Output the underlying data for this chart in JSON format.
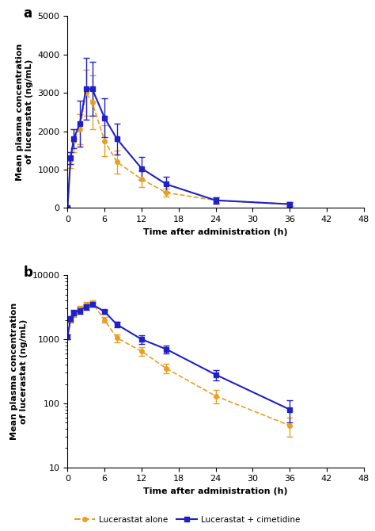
{
  "panel_a": {
    "orange_x": [
      0,
      0.5,
      1,
      2,
      3,
      4,
      6,
      8,
      12,
      16,
      24,
      36
    ],
    "orange_y": [
      0,
      1250,
      1750,
      2050,
      3000,
      2750,
      1750,
      1200,
      750,
      400,
      200,
      100
    ],
    "orange_err": [
      0,
      200,
      300,
      400,
      600,
      700,
      400,
      300,
      200,
      100,
      80,
      50
    ],
    "blue_x": [
      0,
      0.5,
      1,
      2,
      3,
      4,
      6,
      8,
      12,
      16,
      24,
      36
    ],
    "blue_y": [
      0,
      1300,
      1800,
      2200,
      3100,
      3100,
      2350,
      1800,
      1030,
      620,
      200,
      100
    ],
    "blue_err": [
      0,
      150,
      250,
      600,
      800,
      700,
      500,
      400,
      300,
      200,
      80,
      50
    ],
    "ylim": [
      0,
      5000
    ],
    "yticks": [
      0,
      1000,
      2000,
      3000,
      4000,
      5000
    ],
    "ylabel": "Mean plasma concentration\nof lucerastat (ng/mL)",
    "xlabel": "Time after administration (h)",
    "xticks": [
      0,
      6,
      12,
      18,
      24,
      30,
      36,
      42,
      48
    ],
    "xlim": [
      0,
      48
    ]
  },
  "panel_b": {
    "orange_x": [
      0,
      0.5,
      1,
      2,
      3,
      4,
      6,
      8,
      12,
      16,
      24,
      36
    ],
    "orange_y": [
      1100,
      2000,
      2500,
      3000,
      3500,
      3700,
      2000,
      1050,
      650,
      350,
      130,
      45
    ],
    "orange_err": [
      100,
      200,
      250,
      300,
      300,
      350,
      200,
      150,
      100,
      60,
      30,
      15
    ],
    "blue_x": [
      0,
      0.5,
      1,
      2,
      3,
      4,
      6,
      8,
      12,
      16,
      24,
      36
    ],
    "blue_y": [
      1100,
      2100,
      2600,
      2800,
      3200,
      3500,
      2700,
      1700,
      1000,
      700,
      280,
      80
    ],
    "blue_err": [
      100,
      200,
      250,
      300,
      300,
      300,
      200,
      150,
      150,
      100,
      50,
      30
    ],
    "ylim": [
      10,
      10000
    ],
    "yticks": [
      10,
      100,
      1000,
      10000
    ],
    "ylabel": "Mean plasma concentration\nof lucerastat (ng/mL)",
    "xlabel": "Time after administration (h)",
    "xticks": [
      0,
      6,
      12,
      18,
      24,
      30,
      36,
      42,
      48
    ],
    "xlim": [
      0,
      48
    ]
  },
  "orange_color": "#E8A020",
  "blue_color": "#2020C8",
  "legend_labels": [
    "Lucerastat alone",
    "Lucerastat + cimetidine"
  ]
}
